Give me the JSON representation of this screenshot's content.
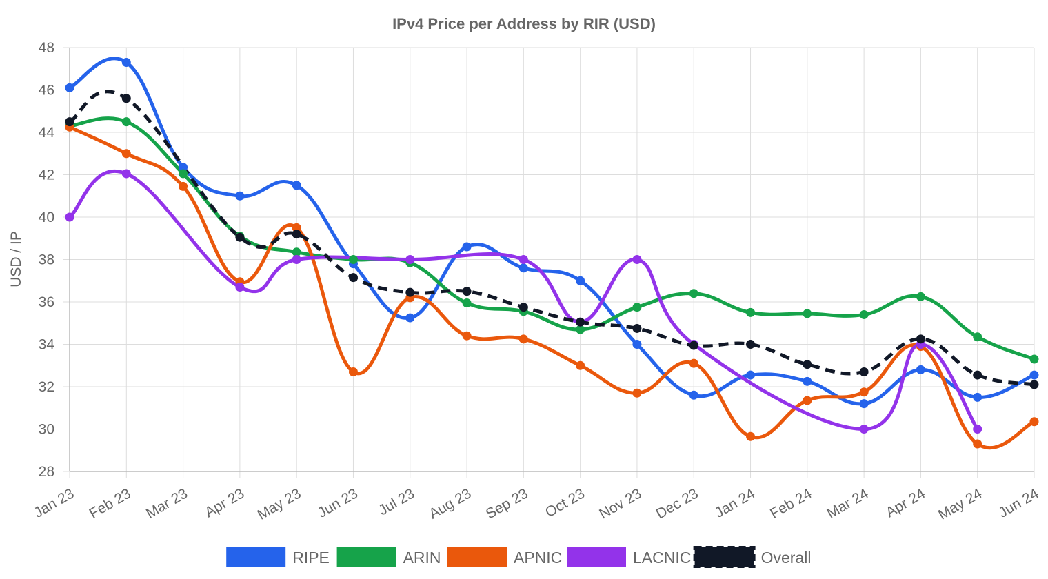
{
  "chart_data": {
    "type": "line",
    "title": "IPv4 Price per Address by RIR (USD)",
    "xlabel": "",
    "ylabel": "USD / IP",
    "ylim": [
      28,
      48
    ],
    "y_ticks": [
      "28",
      "30",
      "32",
      "34",
      "36",
      "38",
      "40",
      "42",
      "44",
      "46",
      "48"
    ],
    "grid": true,
    "legend_position": "bottom",
    "categories": [
      "Jan 23",
      "Feb 23",
      "Mar 23",
      "Apr 23",
      "May 23",
      "Jun 23",
      "Jul 23",
      "Aug 23",
      "Sep 23",
      "Oct 23",
      "Nov 23",
      "Dec 23",
      "Jan 24",
      "Feb 24",
      "Mar 24",
      "Apr 24",
      "May 24",
      "Jun 24"
    ],
    "series": [
      {
        "name": "RIPE",
        "color": "#2563eb",
        "dashed": false,
        "values": [
          46.1,
          47.3,
          42.35,
          41.0,
          41.5,
          37.8,
          35.25,
          38.6,
          37.6,
          37.0,
          34.0,
          31.6,
          32.55,
          32.25,
          31.2,
          32.8,
          31.5,
          32.55
        ]
      },
      {
        "name": "ARIN",
        "color": "#16a34a",
        "dashed": false,
        "values": [
          44.3,
          44.5,
          42.05,
          39.1,
          38.35,
          38.0,
          37.85,
          35.95,
          35.55,
          34.7,
          35.75,
          36.4,
          35.5,
          35.45,
          35.4,
          36.25,
          34.35,
          33.3
        ]
      },
      {
        "name": "APNIC",
        "color": "#ea580c",
        "dashed": false,
        "values": [
          44.25,
          43.0,
          41.45,
          36.95,
          39.5,
          32.7,
          36.2,
          34.4,
          34.25,
          33.0,
          31.7,
          33.1,
          29.65,
          31.35,
          31.75,
          33.9,
          29.3,
          30.35
        ]
      },
      {
        "name": "LACNIC",
        "color": "#9333ea",
        "dashed": false,
        "values": [
          40.0,
          42.05,
          null,
          36.7,
          38.0,
          null,
          38.0,
          null,
          38.0,
          35.05,
          38.0,
          34.0,
          null,
          null,
          30.0,
          34.0,
          30.0,
          null
        ]
      },
      {
        "name": "Overall",
        "color": "#111827",
        "dashed": true,
        "values": [
          44.5,
          45.6,
          null,
          39.05,
          39.2,
          37.15,
          36.45,
          36.5,
          35.75,
          35.05,
          34.75,
          33.95,
          34.0,
          33.05,
          32.7,
          34.25,
          32.55,
          32.1
        ]
      }
    ]
  }
}
